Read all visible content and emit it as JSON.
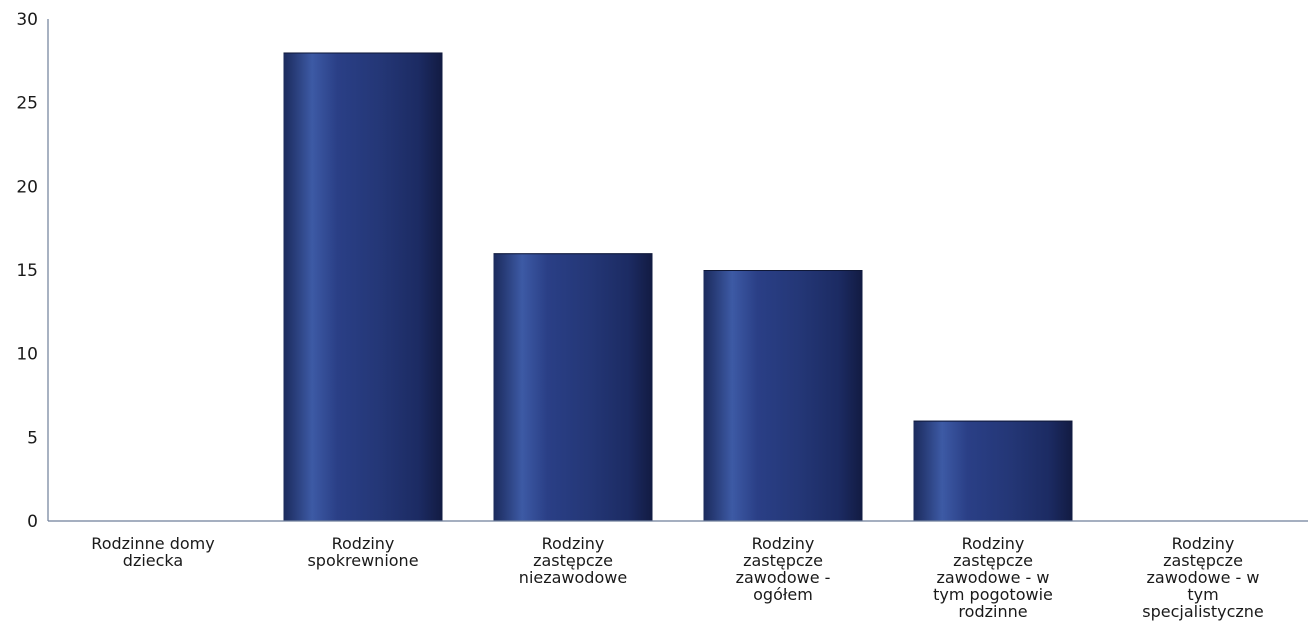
{
  "chart_data": {
    "type": "bar",
    "categories": [
      [
        "Rodzinne domy",
        "dziecka"
      ],
      [
        "Rodziny",
        "spokrewnione"
      ],
      [
        "Rodziny",
        "zastępcze",
        "niezawodowe"
      ],
      [
        "Rodziny",
        "zastępcze",
        "zawodowe -",
        "ogółem"
      ],
      [
        "Rodziny",
        "zastępcze",
        "zawodowe - w",
        "tym pogotowie",
        "rodzinne"
      ],
      [
        "Rodziny",
        "zastępcze",
        "zawodowe - w",
        "tym",
        "specjalistyczne"
      ]
    ],
    "values": [
      0,
      28,
      16,
      15,
      6,
      0
    ],
    "title": "",
    "xlabel": "",
    "ylabel": "",
    "ylim": [
      0,
      30
    ],
    "yticks": [
      "0",
      "5",
      "10",
      "15",
      "20",
      "25",
      "30"
    ],
    "grid": false,
    "legend": "none",
    "colors": {
      "bar_dark": "#14204a",
      "bar_mid": "#2a3f86",
      "bar_light": "#4a68b0",
      "axis": "#6f7f9a",
      "text": "#1a1a1a"
    }
  }
}
